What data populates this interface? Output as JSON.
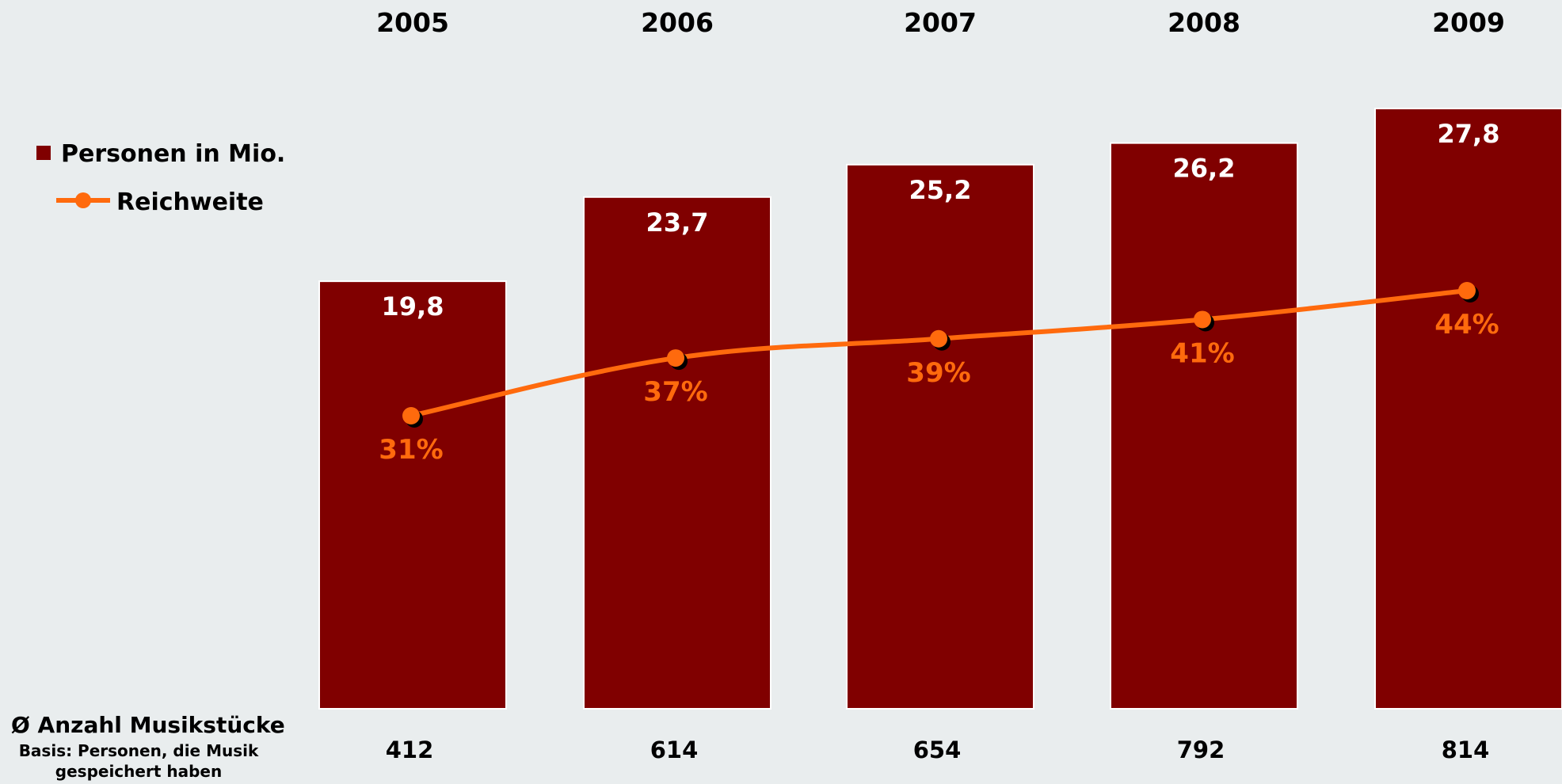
{
  "colors": {
    "background": "#e9edee",
    "bar": "#800000",
    "bar_outline": "#ffffff",
    "line": "#ff6a0d",
    "marker_shadow": "#000000"
  },
  "legend": {
    "bar_label": "Personen in Mio.",
    "line_label": "Reichweite",
    "placement": "top-left"
  },
  "footer": {
    "title": "Ø Anzahl Musikstücke",
    "subtitle_line1": "Basis: Personen, die Musik",
    "subtitle_line2": "gespeichert haben"
  },
  "chart_data": {
    "type": "bar",
    "categories": [
      "2005",
      "2006",
      "2007",
      "2008",
      "2009"
    ],
    "series": [
      {
        "name": "Personen in Mio.",
        "type": "bar",
        "values": [
          19.8,
          23.7,
          25.2,
          26.2,
          27.8
        ],
        "labels": [
          "19,8",
          "23,7",
          "25,2",
          "26,2",
          "27,8"
        ]
      },
      {
        "name": "Reichweite",
        "type": "line",
        "values": [
          31,
          37,
          39,
          41,
          44
        ],
        "labels": [
          "31%",
          "37%",
          "39%",
          "41%",
          "44%"
        ]
      }
    ],
    "extra_row": {
      "label": "Ø Anzahl Musikstücke",
      "values": [
        412,
        614,
        654,
        792,
        814
      ],
      "labels": [
        "412",
        "614",
        "654",
        "792",
        "814"
      ]
    },
    "ylim": [
      0,
      28
    ],
    "grid": false,
    "title": "",
    "xlabel": "",
    "ylabel": ""
  }
}
